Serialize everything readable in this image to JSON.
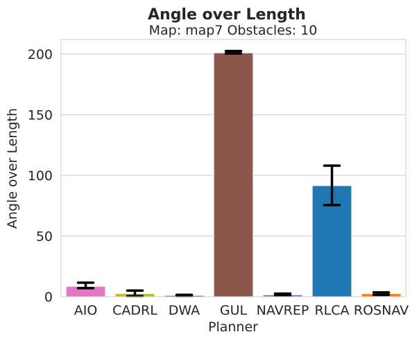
{
  "chart_data": {
    "type": "bar",
    "title": "Angle over Length",
    "subtitle": "Map: map7 Obstacles: 10",
    "xlabel": "Planner",
    "ylabel": "Angle over Length",
    "categories": [
      "AIO",
      "CADRL",
      "DWA",
      "GUL",
      "NAVREP",
      "RLCA",
      "ROSNAV"
    ],
    "values": [
      8.5,
      2.5,
      1.0,
      201.0,
      1.5,
      91.5,
      2.5
    ],
    "error_low": [
      7.0,
      0.5,
      0.5,
      200.5,
      1.0,
      75.5,
      1.5
    ],
    "error_high": [
      11.5,
      5.0,
      1.5,
      202.5,
      2.5,
      108.0,
      3.5
    ],
    "colors": [
      "#e377c2",
      "#bcbd22",
      "#d62728",
      "#8c564b",
      "#9467bd",
      "#1f77b4",
      "#ff7f0e"
    ],
    "yticks": [
      0,
      50,
      100,
      150,
      200
    ],
    "ylim": [
      0,
      212
    ],
    "grid": "y"
  }
}
